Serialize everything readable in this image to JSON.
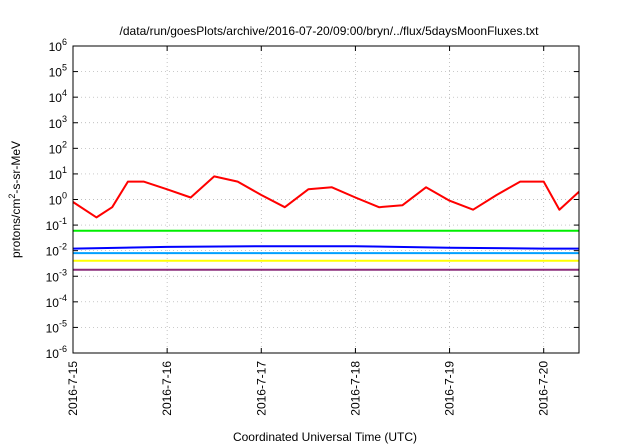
{
  "chart_data": {
    "type": "line",
    "title": "/data/run/goesPlots/archive/2016-07-20/09:00/bryn/../flux/5daysMoonFluxes.txt",
    "xlabel": "Coordinated Universal Time (UTC)",
    "ylabel": "protons/cm²-s-sr-MeV",
    "ylabel_parts": {
      "pre": "protons/cm",
      "sup": "2",
      "post": "-s-sr-MeV"
    },
    "y_scale": "log",
    "ylim": [
      1e-06,
      1000000.0
    ],
    "y_ticks": [
      {
        "value": 1e-06,
        "base": "10",
        "exp": "-6"
      },
      {
        "value": 1e-05,
        "base": "10",
        "exp": "-5"
      },
      {
        "value": 0.0001,
        "base": "10",
        "exp": "-4"
      },
      {
        "value": 0.001,
        "base": "10",
        "exp": "-3"
      },
      {
        "value": 0.01,
        "base": "10",
        "exp": "-2"
      },
      {
        "value": 0.1,
        "base": "10",
        "exp": "-1"
      },
      {
        "value": 1.0,
        "base": "10",
        "exp": "0"
      },
      {
        "value": 10.0,
        "base": "10",
        "exp": "1"
      },
      {
        "value": 100.0,
        "base": "10",
        "exp": "2"
      },
      {
        "value": 1000.0,
        "base": "10",
        "exp": "3"
      },
      {
        "value": 10000.0,
        "base": "10",
        "exp": "4"
      },
      {
        "value": 100000.0,
        "base": "10",
        "exp": "5"
      },
      {
        "value": 1000000.0,
        "base": "10",
        "exp": "6"
      }
    ],
    "xlim": [
      "2016-07-15",
      "2016-07-20 09:00"
    ],
    "x_ticks": [
      "2016-7-15",
      "2016-7-16",
      "2016-7-17",
      "2016-7-18",
      "2016-7-19",
      "2016-7-20"
    ],
    "x_tick_values": [
      "2016-07-15",
      "2016-07-16",
      "2016-07-17",
      "2016-07-18",
      "2016-07-19",
      "2016-07-20"
    ],
    "grid": true,
    "colors": {
      "red": "#ff0000",
      "green": "#00ee00",
      "blue": "#0000ff",
      "light_blue": "#00a0ff",
      "yellow": "#ffff00",
      "purple": "#8b2c7a"
    },
    "series": [
      {
        "color": "#ff0000",
        "x": [
          "2016-07-15",
          "2016-07-15 06:00",
          "2016-07-15 10:00",
          "2016-07-15 14:00",
          "2016-07-15 18:00",
          "2016-07-16",
          "2016-07-16 06:00",
          "2016-07-16 12:00",
          "2016-07-16 18:00",
          "2016-07-17",
          "2016-07-17 06:00",
          "2016-07-17 12:00",
          "2016-07-17 18:00",
          "2016-07-18",
          "2016-07-18 06:00",
          "2016-07-18 12:00",
          "2016-07-18 18:00",
          "2016-07-19",
          "2016-07-19 06:00",
          "2016-07-19 12:00",
          "2016-07-19 18:00",
          "2016-07-20",
          "2016-07-20 04:00",
          "2016-07-20 09:00"
        ],
        "values": [
          0.8,
          0.2,
          0.5,
          5,
          5,
          2.5,
          1.2,
          8,
          5,
          1.5,
          0.5,
          2.5,
          3,
          1.2,
          0.5,
          0.6,
          3,
          0.9,
          0.4,
          1.5,
          5,
          5,
          0.4,
          2
        ]
      },
      {
        "color": "#00ee00",
        "x": [
          "2016-07-15",
          "2016-07-16",
          "2016-07-17",
          "2016-07-18",
          "2016-07-19",
          "2016-07-20",
          "2016-07-20 09:00"
        ],
        "values": [
          0.06,
          0.06,
          0.06,
          0.06,
          0.06,
          0.06,
          0.06
        ]
      },
      {
        "color": "#0000ff",
        "x": [
          "2016-07-15",
          "2016-07-16",
          "2016-07-17",
          "2016-07-18",
          "2016-07-19",
          "2016-07-20",
          "2016-07-20 09:00"
        ],
        "values": [
          0.012,
          0.014,
          0.015,
          0.015,
          0.013,
          0.012,
          0.012
        ]
      },
      {
        "color": "#00a0ff",
        "x": [
          "2016-07-15",
          "2016-07-16",
          "2016-07-17",
          "2016-07-18",
          "2016-07-19",
          "2016-07-20",
          "2016-07-20 09:00"
        ],
        "values": [
          0.008,
          0.008,
          0.008,
          0.008,
          0.008,
          0.008,
          0.008
        ]
      },
      {
        "color": "#ffff00",
        "x": [
          "2016-07-15",
          "2016-07-16",
          "2016-07-17",
          "2016-07-18",
          "2016-07-19",
          "2016-07-20",
          "2016-07-20 09:00"
        ],
        "values": [
          0.004,
          0.004,
          0.004,
          0.004,
          0.004,
          0.004,
          0.004
        ]
      },
      {
        "color": "#8b2c7a",
        "x": [
          "2016-07-15",
          "2016-07-16",
          "2016-07-17",
          "2016-07-18",
          "2016-07-19",
          "2016-07-20",
          "2016-07-20 09:00"
        ],
        "values": [
          0.0018,
          0.0018,
          0.0018,
          0.0018,
          0.0018,
          0.0018,
          0.0018
        ]
      }
    ]
  }
}
